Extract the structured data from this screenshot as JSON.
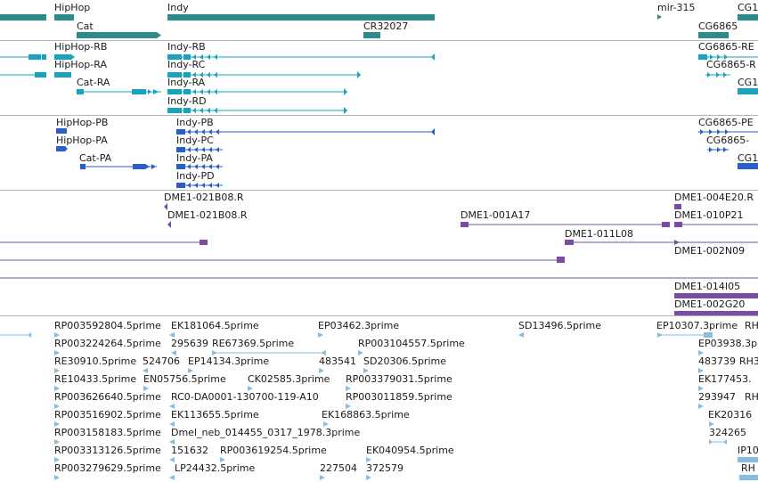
{
  "colors": {
    "gene": "#2e8b8b",
    "rna": "#1aa3bd",
    "protein": "#2b5fc8",
    "clone": "#7a4ca8",
    "est": "#86bde0",
    "separator": "#b5b5b5"
  },
  "panels": {
    "genes": {
      "labels": [
        "HipHop",
        "Indy",
        "mir-315",
        "CG1",
        "Cat",
        "CR32027",
        "CG6865"
      ]
    },
    "transcripts": {
      "labels": [
        "HipHop-RB",
        "Indy-RB",
        "CG6865-RE",
        "HipHop-RA",
        "Indy-RC",
        "CG6865-R",
        "Cat-RA",
        "Indy-RA",
        "CG1",
        "Indy-RD"
      ]
    },
    "proteins": {
      "labels": [
        "HipHop-PB",
        "Indy-PB",
        "CG6865-PE",
        "HipHop-PA",
        "Indy-PC",
        "CG6865-",
        "Cat-PA",
        "Indy-PA",
        "CG1",
        "Indy-PD"
      ]
    },
    "clones": {
      "labels": [
        "DME1-021B08.R",
        "DME1-004E20.R",
        "DME1-021B08.R",
        "DME1-001A17",
        "DME1-010P21",
        "DME1-011L08",
        "DME1-002N09",
        "DME1-014I05",
        "DME1-002G20"
      ]
    },
    "ests": {
      "labels": [
        "RP003592804.5prime",
        "EK181064.5prime",
        "EP03462.3prime",
        "SD13496.5prime",
        "EP10307.3prime",
        "RH",
        "RP003224264.5prime",
        "295639",
        "RE67369.5prime",
        "RP003104557.5prime",
        "EP03938.3p",
        "RE30910.5prime",
        "524706",
        "EP14134.3prime",
        "483541",
        "SD20306.5prime",
        "483739",
        "RH3",
        "RE10433.5prime",
        "EN05756.5prime",
        "CK02585.3prime",
        "RP003379031.5prime",
        "EK177453.",
        "RP003626640.5prime",
        "RC0-DA0001-130700-119-A10",
        "RP003011859.5prime",
        "293947",
        "RH",
        "RP003516902.5prime",
        "EK113655.5prime",
        "EK168863.5prime",
        "EK20316",
        "RP003158183.5prime",
        "Dmel_neb_014455_0317_1978.3prime",
        "324265",
        "RP003313126.5prime",
        "151632",
        "RP003619254.5prime",
        "EK040954.5prime",
        "IP10",
        "RP003279629.5prime",
        "LP24432.5prime",
        "227504",
        "372579",
        "RH"
      ]
    }
  }
}
